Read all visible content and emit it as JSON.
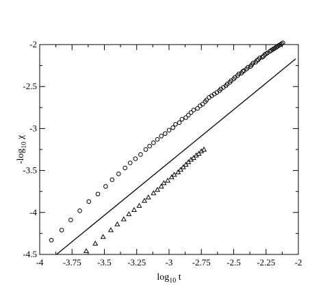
{
  "chart_data": {
    "type": "scatter",
    "title": "",
    "xlabel": {
      "base": "log",
      "sub": "10",
      "rest": " t"
    },
    "ylabel": {
      "base": "-log",
      "sub": "10",
      "rest": " χ"
    },
    "xlim": [
      -4,
      -2
    ],
    "ylim": [
      -4.5,
      -2
    ],
    "x_ticks": [
      {
        "value": -4,
        "label": "-4"
      },
      {
        "value": -3.75,
        "label": "-3.75"
      },
      {
        "value": -3.5,
        "label": "-3.5"
      },
      {
        "value": -3.25,
        "label": "-3.25"
      },
      {
        "value": -3,
        "label": "-3"
      },
      {
        "value": -2.75,
        "label": "-2.75"
      },
      {
        "value": -2.5,
        "label": "-2.5"
      },
      {
        "value": -2.25,
        "label": "-2.25"
      },
      {
        "value": -2,
        "label": "-2"
      }
    ],
    "y_ticks": [
      {
        "value": -2,
        "label": "-2"
      },
      {
        "value": -2.5,
        "label": "-2.5"
      },
      {
        "value": -3,
        "label": "-3"
      },
      {
        "value": -3.5,
        "label": "-3.5"
      },
      {
        "value": -4,
        "label": "-4"
      },
      {
        "value": -4.5,
        "label": "-4.5"
      }
    ],
    "grid": false,
    "series": [
      {
        "marker": "circle",
        "color": "#000000",
        "points": [
          [
            -3.91,
            -4.33
          ],
          [
            -3.83,
            -4.21
          ],
          [
            -3.76,
            -4.09
          ],
          [
            -3.69,
            -3.98
          ],
          [
            -3.62,
            -3.87
          ],
          [
            -3.55,
            -3.78
          ],
          [
            -3.49,
            -3.69
          ],
          [
            -3.44,
            -3.61
          ],
          [
            -3.39,
            -3.54
          ],
          [
            -3.34,
            -3.47
          ],
          [
            -3.3,
            -3.41
          ],
          [
            -3.26,
            -3.36
          ],
          [
            -3.22,
            -3.31
          ],
          [
            -3.18,
            -3.25
          ],
          [
            -3.15,
            -3.21
          ],
          [
            -3.12,
            -3.17
          ],
          [
            -3.09,
            -3.13
          ],
          [
            -3.06,
            -3.09
          ],
          [
            -3.03,
            -3.06
          ],
          [
            -3.0,
            -3.02
          ],
          [
            -2.97,
            -2.99
          ],
          [
            -2.95,
            -2.95
          ],
          [
            -2.92,
            -2.93
          ],
          [
            -2.9,
            -2.89
          ],
          [
            -2.87,
            -2.87
          ],
          [
            -2.85,
            -2.84
          ],
          [
            -2.83,
            -2.81
          ],
          [
            -2.81,
            -2.78
          ],
          [
            -2.78,
            -2.76
          ],
          [
            -2.76,
            -2.73
          ],
          [
            -2.74,
            -2.71
          ],
          [
            -2.72,
            -2.68
          ],
          [
            -2.71,
            -2.66
          ],
          [
            -2.69,
            -2.63
          ],
          [
            -2.67,
            -2.61
          ],
          [
            -2.65,
            -2.59
          ],
          [
            -2.63,
            -2.57
          ],
          [
            -2.61,
            -2.55
          ],
          [
            -2.6,
            -2.53
          ],
          [
            -2.58,
            -2.51
          ],
          [
            -2.56,
            -2.49
          ],
          [
            -2.55,
            -2.47
          ],
          [
            -2.53,
            -2.45
          ],
          [
            -2.52,
            -2.43
          ],
          [
            -2.5,
            -2.41
          ],
          [
            -2.49,
            -2.39
          ],
          [
            -2.47,
            -2.37
          ],
          [
            -2.46,
            -2.35
          ],
          [
            -2.44,
            -2.34
          ],
          [
            -2.43,
            -2.32
          ],
          [
            -2.42,
            -2.31
          ],
          [
            -2.4,
            -2.29
          ],
          [
            -2.39,
            -2.27
          ],
          [
            -2.37,
            -2.26
          ],
          [
            -2.36,
            -2.24
          ],
          [
            -2.35,
            -2.22
          ],
          [
            -2.33,
            -2.21
          ],
          [
            -2.32,
            -2.19
          ],
          [
            -2.31,
            -2.18
          ],
          [
            -2.3,
            -2.16
          ],
          [
            -2.28,
            -2.15
          ],
          [
            -2.27,
            -2.14
          ],
          [
            -2.26,
            -2.12
          ],
          [
            -2.25,
            -2.11
          ],
          [
            -2.24,
            -2.1
          ],
          [
            -2.22,
            -2.08
          ],
          [
            -2.21,
            -2.07
          ],
          [
            -2.2,
            -2.06
          ],
          [
            -2.19,
            -2.05
          ],
          [
            -2.18,
            -2.04
          ],
          [
            -2.17,
            -2.03
          ],
          [
            -2.16,
            -2.02
          ],
          [
            -2.15,
            -2.01
          ],
          [
            -2.14,
            -2.0
          ],
          [
            -2.13,
            -1.99
          ],
          [
            -2.12,
            -1.98
          ]
        ]
      },
      {
        "marker": "triangle",
        "color": "#000000",
        "points": [
          [
            -3.64,
            -4.46
          ],
          [
            -3.57,
            -4.37
          ],
          [
            -3.51,
            -4.29
          ],
          [
            -3.45,
            -4.21
          ],
          [
            -3.4,
            -4.14
          ],
          [
            -3.35,
            -4.08
          ],
          [
            -3.31,
            -4.02
          ],
          [
            -3.27,
            -3.97
          ],
          [
            -3.23,
            -3.92
          ],
          [
            -3.19,
            -3.86
          ],
          [
            -3.16,
            -3.82
          ],
          [
            -3.12,
            -3.77
          ],
          [
            -3.09,
            -3.73
          ],
          [
            -3.06,
            -3.69
          ],
          [
            -3.04,
            -3.65
          ],
          [
            -3.01,
            -3.62
          ],
          [
            -2.98,
            -3.58
          ],
          [
            -2.96,
            -3.55
          ],
          [
            -2.93,
            -3.52
          ],
          [
            -2.91,
            -3.49
          ],
          [
            -2.89,
            -3.46
          ],
          [
            -2.87,
            -3.43
          ],
          [
            -2.85,
            -3.4
          ],
          [
            -2.83,
            -3.37
          ],
          [
            -2.81,
            -3.35
          ],
          [
            -2.79,
            -3.32
          ],
          [
            -2.77,
            -3.3
          ],
          [
            -2.75,
            -3.27
          ],
          [
            -2.73,
            -3.25
          ]
        ]
      },
      {
        "type": "line",
        "color": "#000000",
        "points": [
          [
            -3.87,
            -4.5
          ],
          [
            -2.02,
            -2.17
          ]
        ]
      }
    ]
  }
}
